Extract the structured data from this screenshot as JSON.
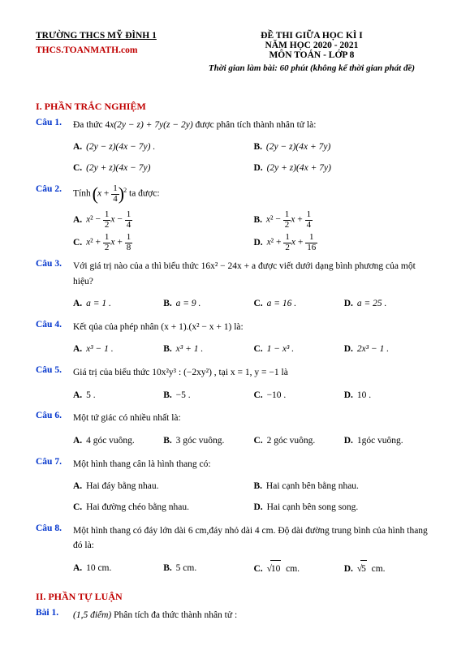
{
  "header": {
    "school": "TRƯỜNG THCS MỸ ĐÌNH 1",
    "site": "THCS.TOANMATH.com",
    "title1": "ĐỀ THI GIỮA HỌC KÌ I",
    "title2": "NĂM HỌC 2020 - 2021",
    "title3": "MÔN TOÁN - LỚP 8",
    "timing": "Thời gian làm bài: 60 phút (không kể thời gian phát đề)"
  },
  "section1": "I. PHẦN TRẮC NGHIỆM",
  "section2": "II. PHẦN TỰ LUẬN",
  "q1": {
    "num": "Câu 1.",
    "text_pre": "Đa thức  4",
    "text_mid": "x(2y − z) + 7y(z − 2y)",
    "text_post": "  được phân tích thành nhân tử là:",
    "a": "(2y − z)(4x − 7y) .",
    "b": "(2y − z)(4x + 7y)",
    "c": "(2y + z)(4x − 7y)",
    "d": "(2y + z)(4x + 7y)"
  },
  "q2": {
    "num": "Câu 2.",
    "text": "Tính ",
    "text2": " ta được:"
  },
  "q3": {
    "num": "Câu 3.",
    "text": "Với giá trị nào của a thì biểu thức  16x² − 24x + a  được viết dưới dạng bình phương của một",
    "text2": "hiệu?",
    "a": "a = 1 .",
    "b": "a = 9 .",
    "c": "a = 16 .",
    "d": "a = 25 ."
  },
  "q4": {
    "num": "Câu 4.",
    "text": "Kết qủa của phép nhân  (x + 1).(x² − x + 1)  là:",
    "a": "x³ − 1 .",
    "b": "x³ + 1 .",
    "c": "1 − x³ .",
    "d": "2x³ − 1 ."
  },
  "q5": {
    "num": "Câu 5.",
    "text": "Giá trị của biểu thức  10x²y³ : (−2xy²) , tại  x = 1, y = −1  là",
    "a": "5 .",
    "b": "−5 .",
    "c": "−10 .",
    "d": "10 ."
  },
  "q6": {
    "num": "Câu 6.",
    "text": "Một tứ giác có nhiều nhất là:",
    "a": "4 góc vuông.",
    "b": "3 góc vuông.",
    "c": "2 góc vuông.",
    "d": "1góc vuông."
  },
  "q7": {
    "num": "Câu 7.",
    "text": "Một hình thang cân là hình thang có:",
    "a": "Hai đáy bằng nhau.",
    "b": "Hai cạnh bên bằng nhau.",
    "c": "Hai đường chéo bằng nhau.",
    "d": "Hai cạnh bên song song."
  },
  "q8": {
    "num": "Câu 8.",
    "text": "Một hình thang có đáy lớn dài 6 cm,đáy nhỏ dài 4 cm. Độ dài đường trung bình của hình thang đó là:",
    "a": "10 cm.",
    "b": "5 cm.",
    "c_pre": "√",
    "c": "10  cm.",
    "d_pre": "√",
    "d": "5  cm."
  },
  "b1": {
    "num": "Bài 1.",
    "text": "(1,5 điểm) ",
    "text2": "Phân tích đa thức thành nhân tử :"
  }
}
